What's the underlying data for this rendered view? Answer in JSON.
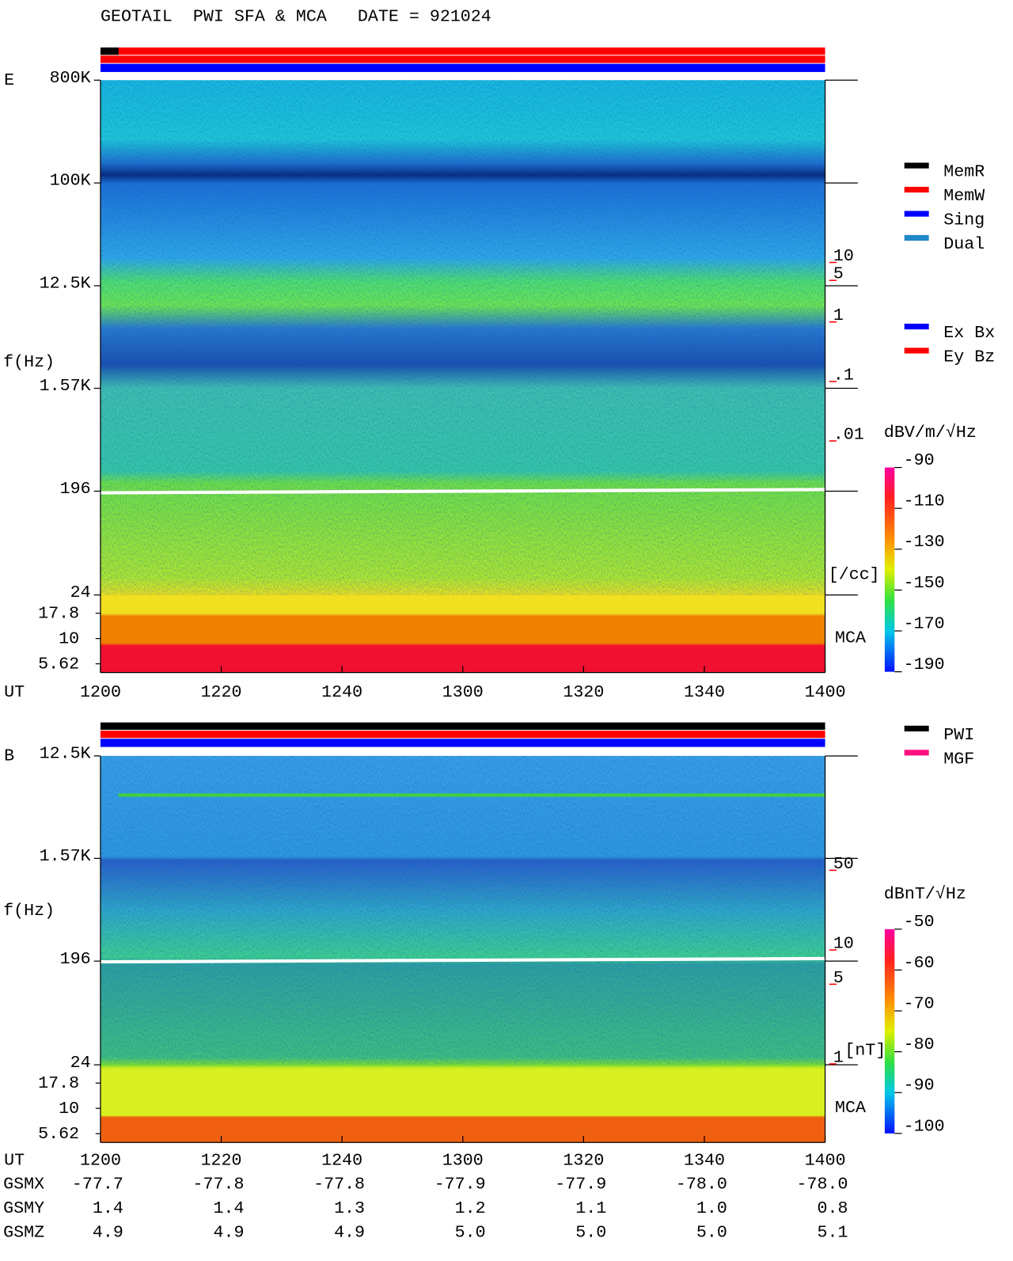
{
  "title": "GEOTAIL  PWI SFA & MCA   DATE = 921024",
  "legend_mode": [
    {
      "name": "MemR",
      "color": "#000000"
    },
    {
      "name": "MemW",
      "color": "#ff0000"
    },
    {
      "name": "Sing",
      "color": "#0000ff"
    },
    {
      "name": "Dual",
      "color": "#1e88c8"
    }
  ],
  "legend_component": [
    {
      "name": "Ex Bx",
      "color": "#0000ff"
    },
    {
      "name": "Ey Bz",
      "color": "#ff0000"
    }
  ],
  "legend_instrument": [
    {
      "name": "PWI",
      "color": "#000000"
    },
    {
      "name": "MGF",
      "color": "#ff1080"
    }
  ],
  "chart_data": [
    {
      "type": "spectrogram",
      "component": "E",
      "ylabel": "f(Hz)",
      "xlabel": "UT",
      "log_y": true,
      "ylim": [
        24,
        800000
      ],
      "yticks": [
        {
          "value": 800000,
          "label": "800K"
        },
        {
          "value": 100000,
          "label": "100K"
        },
        {
          "value": 12500,
          "label": "12.5K"
        },
        {
          "value": 1570,
          "label": "1.57K"
        },
        196,
        24
      ],
      "mca_label": "MCA",
      "mca_ylim": [
        4.6,
        27
      ],
      "mca_yticks": [
        17.8,
        10,
        5.62
      ],
      "categories": [
        "1200",
        "1220",
        "1240",
        "1300",
        "1320",
        "1340",
        "1400"
      ],
      "y2lim": [
        2e-05,
        9000
      ],
      "y2ticks": [
        10,
        5,
        1,
        {
          "value": 0.1,
          "label": ".1"
        },
        {
          "value": 0.01,
          "label": ".01"
        }
      ],
      "y2label": "[/cc]",
      "y2color": "#ff0000",
      "colorbar": {
        "label": "dBV/m/√Hz",
        "lim": [
          -190,
          -90
        ],
        "ticks": [
          -90,
          -110,
          -130,
          -150,
          -170,
          -190
        ]
      }
    },
    {
      "type": "spectrogram",
      "component": "B",
      "ylabel": "f(Hz)",
      "xlabel": "UT",
      "log_y": true,
      "ylim": [
        24,
        12500
      ],
      "yticks": [
        {
          "value": 12500,
          "label": "12.5K"
        },
        {
          "value": 1570,
          "label": "1.57K"
        },
        196,
        24
      ],
      "mca_label": "MCA",
      "mca_ylim": [
        4.6,
        27
      ],
      "mca_yticks": [
        17.8,
        10,
        5.62
      ],
      "categories": [
        "1200",
        "1220",
        "1240",
        "1300",
        "1320",
        "1340",
        "1400"
      ],
      "y2lim": [
        0.86,
        442
      ],
      "y2ticks": [
        50,
        10,
        5,
        1
      ],
      "y2label": "[nT]",
      "y2color": "#ff0000",
      "colorbar": {
        "label": "dBnT/√Hz",
        "lim": [
          -100,
          -50
        ],
        "ticks": [
          -50,
          -60,
          -70,
          -80,
          -90,
          -100
        ]
      }
    }
  ],
  "orbit": [
    {
      "label": "GSMX",
      "values": [
        "-77.7",
        "-77.8",
        "-77.8",
        "-77.9",
        "-77.9",
        "-78.0",
        "-78.0"
      ]
    },
    {
      "label": "GSMY",
      "values": [
        "1.4",
        "1.4",
        "1.3",
        "1.2",
        "1.1",
        "1.0",
        "0.8"
      ]
    },
    {
      "label": "GSMZ",
      "values": [
        "4.9",
        "4.9",
        "4.9",
        "5.0",
        "5.0",
        "5.0",
        "5.1"
      ]
    }
  ]
}
